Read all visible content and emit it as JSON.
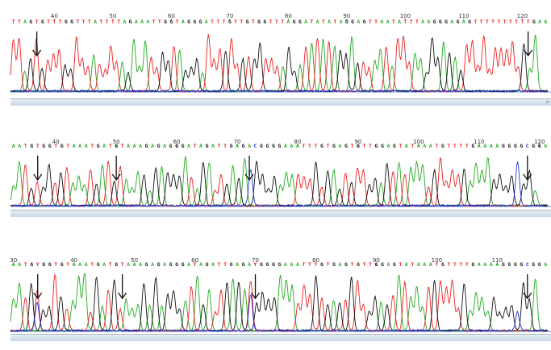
{
  "colors": {
    "A": "#22aa22",
    "T": "#ee2222",
    "G": "#111111",
    "C": "#2233dd",
    "N": "#ee2222",
    "Y": "#ee2222"
  },
  "panels": [
    {
      "id": "trace-1",
      "sequence": "TTAGTGTTTGGTTTATTTTAGAAATTGGTAGGGATTTGTTGTGGTTTAGGATATATAGGAGTTAATATTTAAGGGAGAGTTTTTTTTTTGAA",
      "seq_start": 33,
      "ruler": [
        "40",
        "50",
        "60",
        "70",
        "80",
        "90",
        "100",
        "110",
        "120"
      ],
      "arrow_positions": [
        37,
        121
      ],
      "scroll_indicator": "▸"
    },
    {
      "id": "trace-2",
      "sequence": "AATGTGGTGTAAATGATGTAAAGAGAGGGATAGATTGAGACGGGGAAATTTGTGAGTGTTGGAGTATAAATGTTTTGAAAAGGGGCGGA",
      "seq_start": 33,
      "ruler": [
        "40",
        "50",
        "60",
        "70",
        "80",
        "90",
        "100",
        "110",
        "120"
      ],
      "arrow_positions": [
        37,
        50,
        72,
        118
      ],
      "scroll_indicator": ""
    },
    {
      "id": "trace-3",
      "sequence": "AATGYGGTGTAAATGATGTAAAGAGAGGGATAGATTGAGAYGGGGAAATTTGTGAGTGTTGGAGTATAAATGTTTTGAAAAGGGGCGGA",
      "seq_start": 30,
      "ruler": [
        "30",
        "40",
        "50",
        "60",
        "70",
        "80",
        "90",
        "100",
        "110"
      ],
      "arrow_positions": [
        34,
        48,
        70,
        115
      ],
      "scroll_indicator": ""
    }
  ]
}
